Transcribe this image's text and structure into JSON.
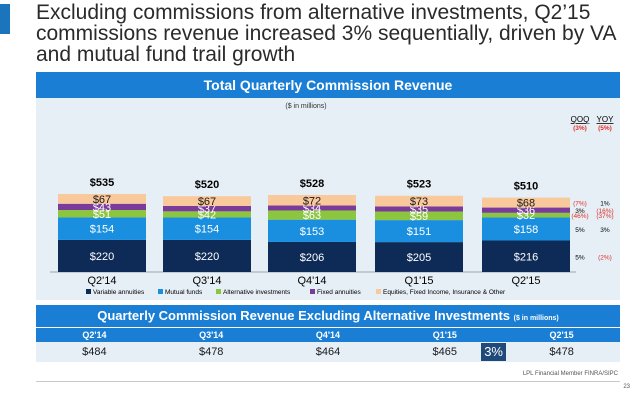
{
  "headline": "Excluding commissions from alternative investments, Q2’15 commissions revenue increased 3% sequentially, driven by VA and mutual fund trail growth",
  "chart_banner": "Total Quarterly Commission Revenue",
  "units": "($ in millions)",
  "chart_data": {
    "type": "bar",
    "stacked": true,
    "title": "Total Quarterly Commission Revenue",
    "categories": [
      "Q2'14",
      "Q3'14",
      "Q4'14",
      "Q1'15",
      "Q2'15"
    ],
    "totals": [
      "$535",
      "$520",
      "$528",
      "$523",
      "$510"
    ],
    "series": [
      {
        "name": "Variable annuities",
        "color": "#0e2a57",
        "text_color": "#ffffff",
        "values": [
          220,
          220,
          206,
          205,
          216
        ],
        "labels": [
          "$220",
          "$220",
          "$206",
          "$205",
          "$216"
        ]
      },
      {
        "name": "Mutual funds",
        "color": "#1a8fe0",
        "text_color": "#ffffff",
        "values": [
          154,
          154,
          153,
          151,
          158
        ],
        "labels": [
          "$154",
          "$154",
          "$153",
          "$151",
          "$158"
        ]
      },
      {
        "name": "Alternative investments",
        "color": "#8cc63f",
        "text_color": "#ffffff",
        "values": [
          51,
          42,
          63,
          59,
          32
        ],
        "labels": [
          "$51",
          "$42",
          "$63",
          "$59",
          "$32"
        ]
      },
      {
        "name": "Fixed annuities",
        "color": "#7a3b9a",
        "text_color": "#ffffff",
        "values": [
          43,
          37,
          34,
          35,
          36
        ],
        "labels": [
          "$43",
          "$37",
          "$34",
          "$35",
          "$36"
        ]
      },
      {
        "name": "Equities, Fixed Income, Insurance & Other",
        "color": "#f9c89b",
        "text_color": "#1a1a1a",
        "values": [
          67,
          67,
          72,
          73,
          68
        ],
        "labels": [
          "$67",
          "$67",
          "$72",
          "$73",
          "$68"
        ]
      }
    ],
    "legend_position": "bottom",
    "growth_table": {
      "headers": [
        "QOQ",
        "YOY"
      ],
      "totals_row": [
        "(3%)",
        "(5%)"
      ],
      "rows": [
        {
          "series": "Equities, Fixed Income, Insurance & Other",
          "qoq": "(7%)",
          "yoy": "1%"
        },
        {
          "series": "Fixed annuities",
          "qoq": "3%",
          "yoy": "(16%)"
        },
        {
          "series": "Alternative investments",
          "qoq": "(46%)",
          "yoy": "(37%)"
        },
        {
          "series": "Mutual funds",
          "qoq": "5%",
          "yoy": "3%"
        },
        {
          "series": "Variable annuities",
          "qoq": "5%",
          "yoy": "(2%)"
        }
      ]
    }
  },
  "table_banner": {
    "title": "Quarterly Commission Revenue Excluding Alternative Investments",
    "units": "($ in millions)"
  },
  "excl_table": {
    "headers": [
      "Q2'14",
      "Q3'14",
      "Q4'14",
      "Q1'15",
      "Q2'15"
    ],
    "values": [
      "$484",
      "$478",
      "$464",
      "$465",
      "$478"
    ],
    "change_badge": "3%"
  },
  "footer": "LPL Financial  Member FINRA/SIPC",
  "page_number": "23",
  "colors": {
    "accent": "#1a7fd4",
    "negative": "#e0302a",
    "panel": "#e6eef6"
  }
}
